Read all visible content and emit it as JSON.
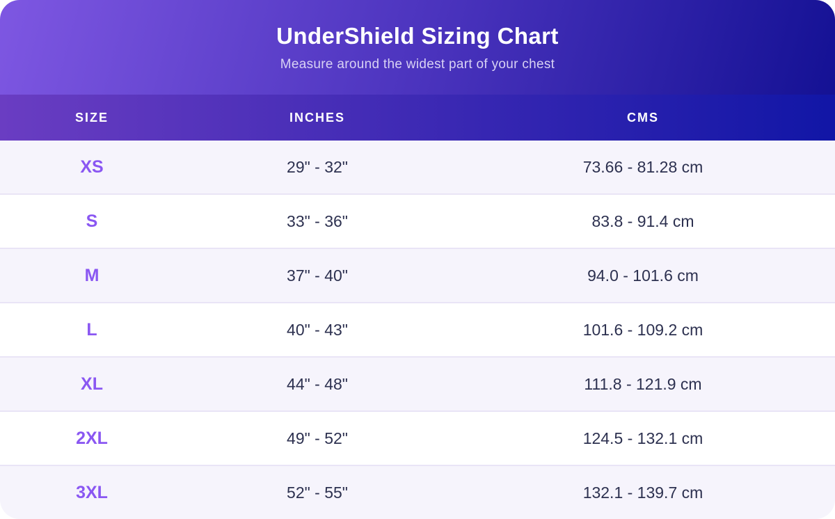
{
  "header": {
    "title": "UnderShield Sizing Chart",
    "subtitle": "Measure around the widest part of your chest"
  },
  "table": {
    "columns": [
      "SIZE",
      "INCHES",
      "CMS"
    ],
    "rows": [
      {
        "size": "XS",
        "inches": "29\" - 32\"",
        "cms": "73.66 - 81.28 cm"
      },
      {
        "size": "S",
        "inches": "33\" - 36\"",
        "cms": "83.8 - 91.4 cm"
      },
      {
        "size": "M",
        "inches": "37\" - 40\"",
        "cms": "94.0 - 101.6 cm"
      },
      {
        "size": "L",
        "inches": "40\" - 43\"",
        "cms": "101.6 - 109.2 cm"
      },
      {
        "size": "XL",
        "inches": "44\" - 48\"",
        "cms": "111.8 - 121.9 cm"
      },
      {
        "size": "2XL",
        "inches": "49\" - 52\"",
        "cms": "124.5 - 132.1 cm"
      },
      {
        "size": "3XL",
        "inches": "52\" - 55\"",
        "cms": "132.1 - 139.7 cm"
      }
    ]
  },
  "chart_data": {
    "type": "table",
    "title": "UnderShield Sizing Chart",
    "subtitle": "Measure around the widest part of your chest",
    "columns": [
      "SIZE",
      "INCHES",
      "CMS"
    ],
    "rows": [
      [
        "XS",
        "29\" - 32\"",
        "73.66 - 81.28 cm"
      ],
      [
        "S",
        "33\" - 36\"",
        "83.8 - 91.4 cm"
      ],
      [
        "M",
        "37\" - 40\"",
        "94.0 - 101.6 cm"
      ],
      [
        "L",
        "40\" - 43\"",
        "101.6 - 109.2 cm"
      ],
      [
        "XL",
        "44\" - 48\"",
        "111.8 - 121.9 cm"
      ],
      [
        "2XL",
        "49\" - 52\"",
        "124.5 - 132.1 cm"
      ],
      [
        "3XL",
        "52\" - 55\"",
        "132.1 - 139.7 cm"
      ]
    ],
    "size_ranges_inches": [
      [
        29,
        32
      ],
      [
        33,
        36
      ],
      [
        37,
        40
      ],
      [
        40,
        43
      ],
      [
        44,
        48
      ],
      [
        49,
        52
      ],
      [
        52,
        55
      ]
    ],
    "size_ranges_cm": [
      [
        73.66,
        81.28
      ],
      [
        83.8,
        91.4
      ],
      [
        94.0,
        101.6
      ],
      [
        101.6,
        109.2
      ],
      [
        111.8,
        121.9
      ],
      [
        124.5,
        132.1
      ],
      [
        132.1,
        139.7
      ]
    ]
  },
  "colors": {
    "banner_gradient_start": "#7e57e2",
    "banner_gradient_end": "#141194",
    "column_header_gradient_start": "#6a3dc2",
    "column_header_gradient_end": "#1116a6",
    "size_accent": "#8a57f2",
    "row_alt_background": "#f6f4fc",
    "data_text": "#2d3150",
    "subtitle_text": "#d8d2f4"
  }
}
